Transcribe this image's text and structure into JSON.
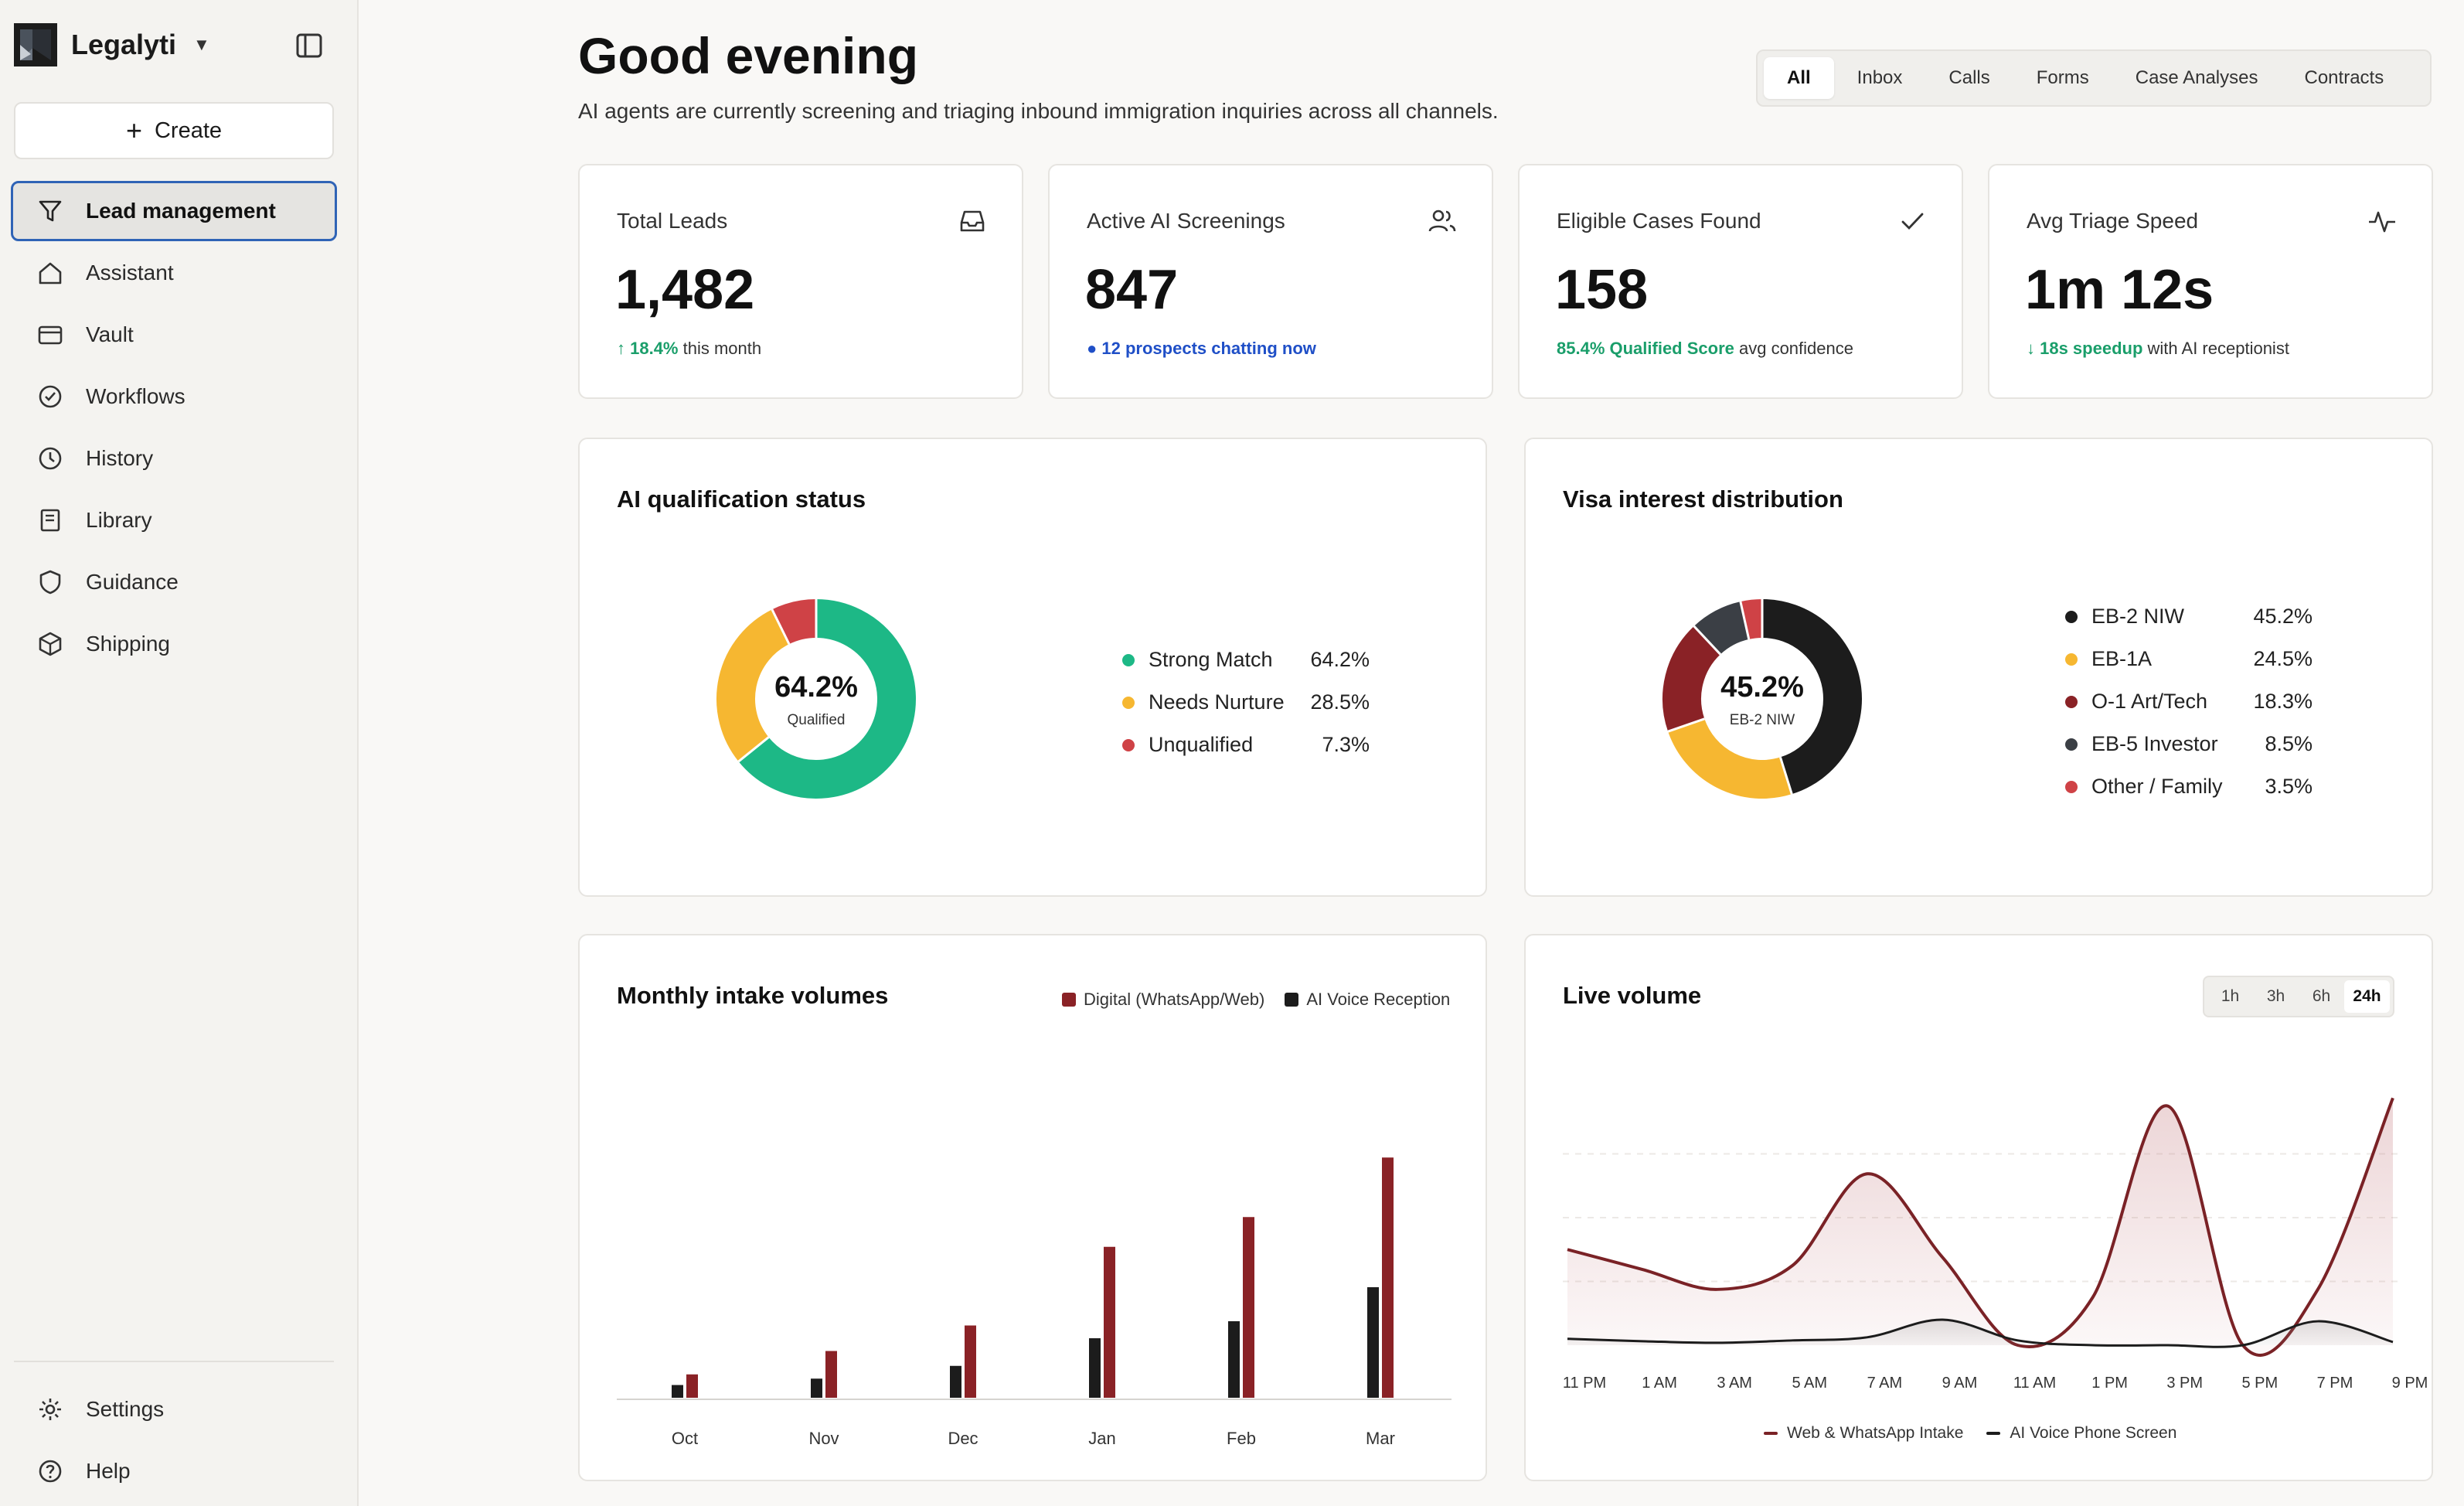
{
  "app": {
    "name": "Legalyti"
  },
  "sidebar": {
    "create_label": "Create",
    "items": [
      {
        "label": "Lead management",
        "icon": "filter-icon",
        "active": true
      },
      {
        "label": "Assistant",
        "icon": "home-icon"
      },
      {
        "label": "Vault",
        "icon": "vault-icon"
      },
      {
        "label": "Workflows",
        "icon": "check-circle-icon"
      },
      {
        "label": "History",
        "icon": "clock-icon"
      },
      {
        "label": "Library",
        "icon": "book-icon"
      },
      {
        "label": "Guidance",
        "icon": "shield-icon"
      },
      {
        "label": "Shipping",
        "icon": "box-icon"
      }
    ],
    "bottom_items": [
      {
        "label": "Settings",
        "icon": "gear-icon"
      },
      {
        "label": "Help",
        "icon": "help-icon"
      }
    ]
  },
  "header": {
    "greeting": "Good evening",
    "subtitle": "AI agents are currently screening and triaging inbound immigration inquiries across all channels.",
    "tabs": [
      "All",
      "Inbox",
      "Calls",
      "Forms",
      "Case Analyses",
      "Contracts"
    ],
    "active_tab": "All"
  },
  "stats": [
    {
      "label": "Total Leads",
      "value": "1,482",
      "highlight": "↑ 18.4%",
      "note": " this month",
      "icon": "inbox-icon"
    },
    {
      "label": "Active AI Screenings",
      "value": "847",
      "highlight": "● 12 prospects chatting now",
      "note": "",
      "icon": "users-icon"
    },
    {
      "label": "Eligible Cases Found",
      "value": "158",
      "highlight": "85.4% Qualified Score",
      "note": " avg confidence",
      "icon": "check-icon"
    },
    {
      "label": "Avg Triage Speed",
      "value": "1m 12s",
      "highlight": "↓ 18s speedup",
      "note": " with AI receptionist",
      "icon": "activity-icon"
    }
  ],
  "colors": {
    "green": "#1db886",
    "amber": "#f6b731",
    "red": "#cf4246",
    "black": "#1c1c1c",
    "maroon": "#8a2226",
    "slate": "#3b3f45",
    "line": "#7a2226"
  },
  "qualification": {
    "title": "AI qualification status",
    "center_value": "64.2%",
    "center_label": "Qualified",
    "chart_data": {
      "type": "pie",
      "labels": [
        "Strong Match",
        "Needs Nurture",
        "Unqualified"
      ],
      "values": [
        64.2,
        28.5,
        7.3
      ],
      "value_labels": [
        "64.2%",
        "28.5%",
        "7.3%"
      ],
      "colors": [
        "#1db886",
        "#f6b731",
        "#cf4246"
      ]
    }
  },
  "visa": {
    "title": "Visa interest distribution",
    "center_value": "45.2%",
    "center_label": "EB-2 NIW",
    "chart_data": {
      "type": "pie",
      "labels": [
        "EB-2 NIW",
        "EB-1A",
        "O-1 Art/Tech",
        "EB-5 Investor",
        "Other / Family"
      ],
      "values": [
        45.2,
        24.5,
        18.3,
        8.5,
        3.5
      ],
      "value_labels": [
        "45.2%",
        "24.5%",
        "18.3%",
        "8.5%",
        "3.5%"
      ],
      "colors": [
        "#1c1c1c",
        "#f6b731",
        "#8a2226",
        "#3b3f45",
        "#cf4246"
      ]
    }
  },
  "monthly": {
    "title": "Monthly intake volumes",
    "chart_data": {
      "type": "bar",
      "categories": [
        "Oct",
        "Nov",
        "Dec",
        "Jan",
        "Feb",
        "Mar"
      ],
      "series": [
        {
          "name": "AI Voice Reception",
          "values": [
            12,
            18,
            30,
            56,
            72,
            104
          ],
          "color": "#1c1c1c"
        },
        {
          "name": "Digital (WhatsApp/Web)",
          "values": [
            22,
            44,
            68,
            142,
            170,
            226
          ],
          "color": "#8a2226"
        }
      ],
      "legend": [
        "Digital (WhatsApp/Web)",
        "AI Voice Reception"
      ],
      "ylim": [
        0,
        240
      ]
    }
  },
  "live": {
    "title": "Live volume",
    "ranges": [
      "1h",
      "3h",
      "6h",
      "24h"
    ],
    "active_range": "24h",
    "chart_data": {
      "type": "area",
      "x": [
        "11 PM",
        "1 AM",
        "3 AM",
        "5 AM",
        "7 AM",
        "9 AM",
        "11 AM",
        "1 PM",
        "3 PM",
        "5 PM",
        "7 PM",
        "9 PM"
      ],
      "series": [
        {
          "name": "Web & WhatsApp Intake",
          "values": [
            120,
            95,
            70,
            100,
            215,
            110,
            0,
            60,
            300,
            0,
            70,
            310
          ],
          "color": "#7a2226"
        },
        {
          "name": "AI Voice Phone Screen",
          "values": [
            8,
            5,
            3,
            6,
            10,
            32,
            6,
            0,
            0,
            0,
            30,
            4
          ],
          "color": "#1c1c1c"
        }
      ],
      "ylim": [
        0,
        320
      ]
    }
  }
}
